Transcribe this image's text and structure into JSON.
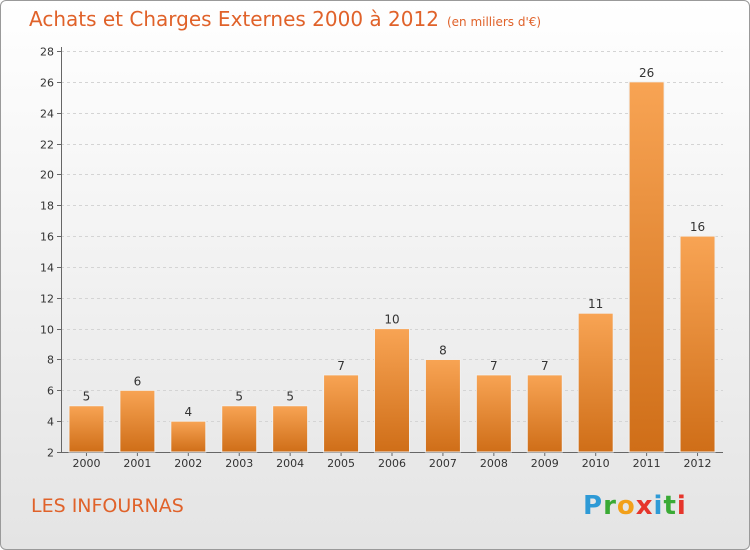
{
  "header": {
    "title": "Achats et Charges Externes 2000 à 2012",
    "unit": "(en milliers d'€)"
  },
  "footer": {
    "place": "LES INFOURNAS",
    "logo_letters": [
      "P",
      "r",
      "o",
      "x",
      "i",
      "t",
      "i"
    ],
    "logo_colors": [
      "#2e9ad6",
      "#3aaa35",
      "#f2a01a",
      "#e6352b",
      "#2e9ad6",
      "#3aaa35",
      "#e6352b"
    ]
  },
  "colors": {
    "accent": "#e0622a",
    "bar_light": "#f8a454",
    "bar_dark": "#cf6e18",
    "grid": "#d4d4d4",
    "axis": "#666666"
  },
  "chart_data": {
    "type": "bar",
    "categories": [
      "2000",
      "2001",
      "2002",
      "2003",
      "2004",
      "2005",
      "2006",
      "2007",
      "2008",
      "2009",
      "2010",
      "2011",
      "2012"
    ],
    "values": [
      5,
      6,
      4,
      5,
      5,
      7,
      10,
      8,
      7,
      7,
      11,
      26,
      16
    ],
    "yticks": [
      2,
      4,
      6,
      8,
      10,
      12,
      14,
      16,
      18,
      20,
      22,
      24,
      26,
      28
    ],
    "ylim": [
      2,
      28
    ],
    "grid": true,
    "data_labels": true
  }
}
